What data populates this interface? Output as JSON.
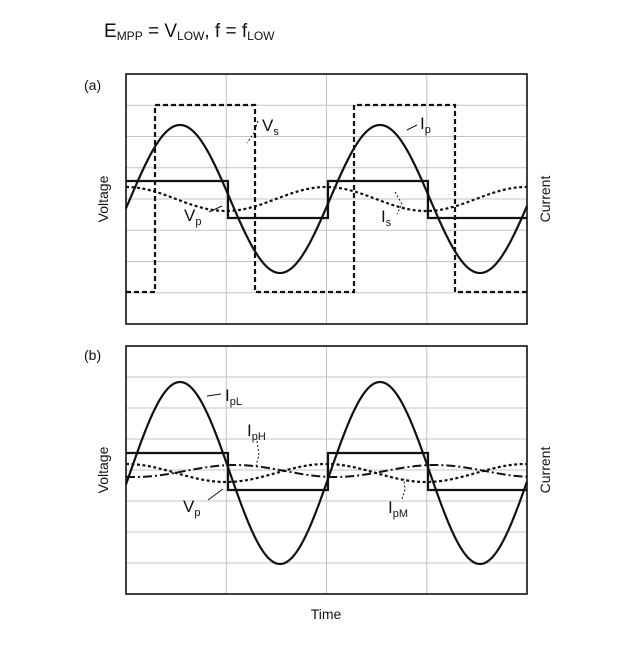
{
  "header": {
    "main": "E",
    "main_sub": "MPP",
    "eq": " = V",
    "eq_sub": "LOW",
    "sep": ",  f = f",
    "f_sub": "LOW"
  },
  "panel_a": {
    "label": "(a)",
    "ylabel_left": "Voltage",
    "ylabel_right": "Current",
    "vs": {
      "main": "V",
      "sub": "s"
    },
    "ip": {
      "main": "I",
      "sub": "p"
    },
    "vp": {
      "main": "V",
      "sub": "p"
    },
    "is": {
      "main": "I",
      "sub": "s"
    }
  },
  "panel_b": {
    "label": "(b)",
    "ylabel_left": "Voltage",
    "ylabel_right": "Current",
    "ipl": {
      "main": "I",
      "sub": "pL"
    },
    "iph": {
      "main": "I",
      "sub": "pH"
    },
    "vp": {
      "main": "V",
      "sub": "p"
    },
    "ipm": {
      "main": "I",
      "sub": "pM"
    }
  },
  "xlabel": "Time"
}
